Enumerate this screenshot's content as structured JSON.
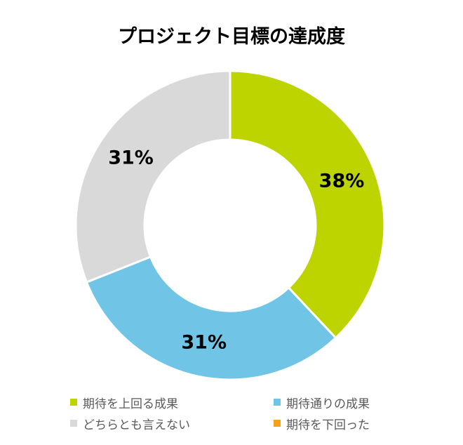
{
  "chart_data": {
    "type": "pie",
    "title": "プロジェクト目標の達成度",
    "categories": [
      "期待を上回る成果",
      "期待通りの成果",
      "どちらとも言えない",
      "期待を下回った"
    ],
    "values": [
      38,
      31,
      31,
      0
    ],
    "labels": [
      "38%",
      "31%",
      "31%",
      ""
    ],
    "colors": [
      "#bdd400",
      "#70c5e6",
      "#d9d9d9",
      "#f7a11a"
    ],
    "legend_position": "bottom"
  }
}
